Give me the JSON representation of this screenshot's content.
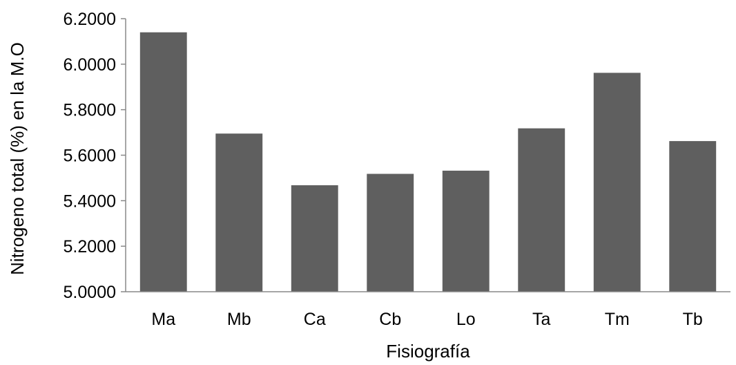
{
  "chart_data": {
    "type": "bar",
    "title": "",
    "xlabel": "Fisiografía",
    "ylabel": "Nitrogeno total (%) en la M.O",
    "categories": [
      "Ma",
      "Mb",
      "Ca",
      "Cb",
      "Lo",
      "Ta",
      "Tm",
      "Tb"
    ],
    "values": [
      6.14,
      5.695,
      5.468,
      5.518,
      5.532,
      5.718,
      5.962,
      5.662
    ],
    "ylim": [
      5.0,
      6.2
    ],
    "yticks": [
      "5.0000",
      "5.2000",
      "5.4000",
      "5.6000",
      "5.8000",
      "6.0000",
      "6.2000"
    ],
    "bar_color": "#5f5f5f",
    "grid": false,
    "legend": "none"
  }
}
